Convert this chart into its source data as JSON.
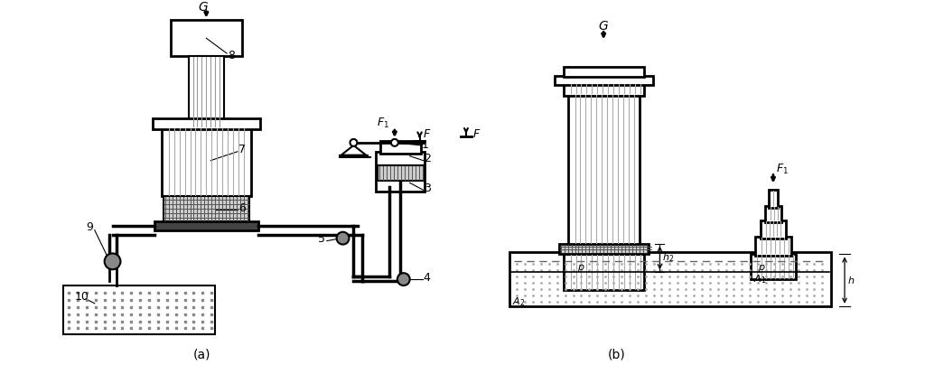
{
  "background": "#ffffff",
  "subfig_a_label": "(a)",
  "subfig_b_label": "(b)"
}
